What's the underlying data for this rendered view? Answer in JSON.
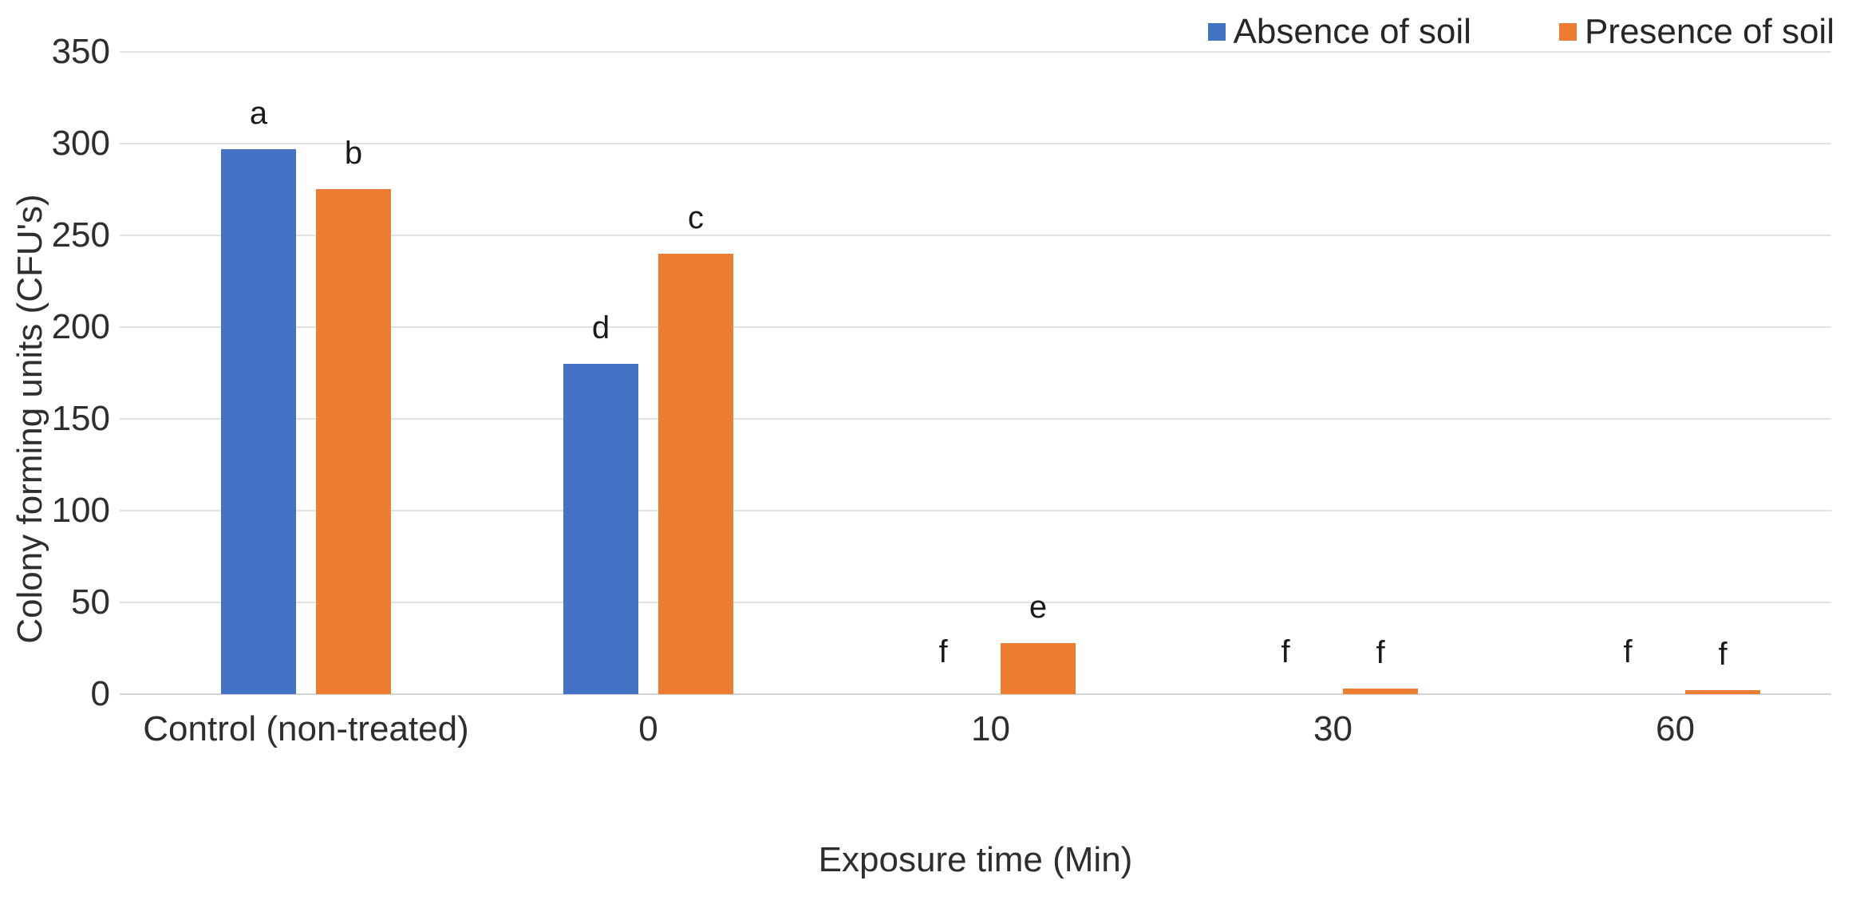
{
  "chart_data": {
    "type": "bar",
    "title": "",
    "categories": [
      "Control (non-treated)",
      "0",
      "10",
      "30",
      "60"
    ],
    "series": [
      {
        "name": "Absence of soil",
        "color": "#4472C4",
        "values": [
          297,
          180,
          0,
          0,
          0
        ],
        "bar_labels": [
          "a",
          "d",
          "f",
          "f",
          "f"
        ]
      },
      {
        "name": "Presence of soil",
        "color": "#ED7D31",
        "values": [
          275,
          240,
          28,
          3,
          2
        ],
        "bar_labels": [
          "b",
          "c",
          "e",
          "f",
          "f"
        ]
      }
    ],
    "xlabel": "Exposure time (Min)",
    "ylabel": "Colony forming units (CFU's)",
    "ylim": [
      0,
      350
    ],
    "yticks": [
      0,
      50,
      100,
      150,
      200,
      250,
      300,
      350
    ],
    "grid": true,
    "legend_position": "top-right",
    "colors": {
      "grid_line": "#e2e2e2",
      "axis_line": "#d4d4d4",
      "text": "#2e2e2e",
      "bar_label_text": "#1a1a1a",
      "background": "#ffffff"
    }
  }
}
